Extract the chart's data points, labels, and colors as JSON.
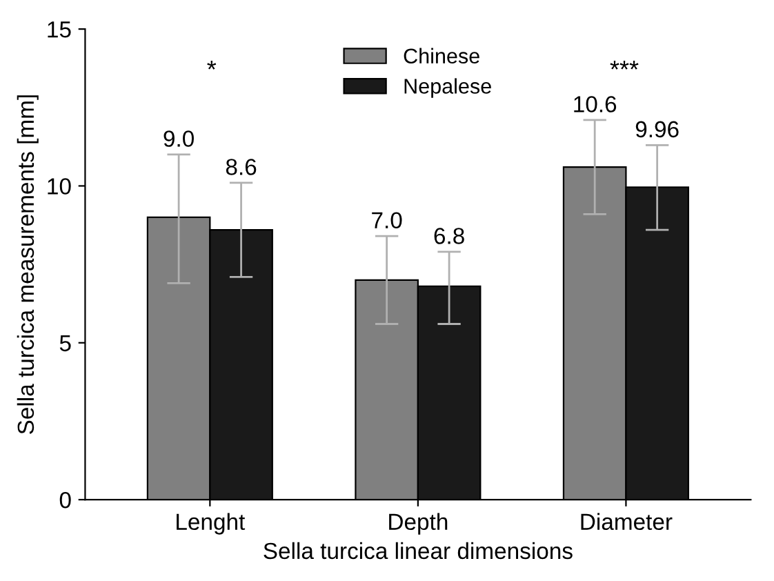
{
  "chart_data": {
    "type": "bar",
    "xlabel": "Sella turcica linear dimensions",
    "ylabel": "Sella turcica measurements [mm]",
    "categories": [
      "Lenght",
      "Depth",
      "Diameter"
    ],
    "series": [
      {
        "name": "Chinese",
        "color": "#808080",
        "values": [
          9.0,
          7.0,
          10.6
        ],
        "value_labels": [
          "9.0",
          "7.0",
          "10.6"
        ],
        "errors": [
          [
            6.9,
            11.0
          ],
          [
            5.6,
            8.4
          ],
          [
            9.1,
            12.1
          ]
        ]
      },
      {
        "name": "Nepalese",
        "color": "#1a1a1a",
        "values": [
          8.6,
          6.8,
          9.96
        ],
        "value_labels": [
          "8.6",
          "6.8",
          "9.96"
        ],
        "errors": [
          [
            7.1,
            10.1
          ],
          [
            5.6,
            7.9
          ],
          [
            8.6,
            11.3
          ]
        ]
      }
    ],
    "ylim": [
      0,
      15
    ],
    "yticks": [
      0,
      5,
      10,
      15
    ],
    "grid": false,
    "legend": "top",
    "annotations": [
      "*",
      "***"
    ]
  }
}
